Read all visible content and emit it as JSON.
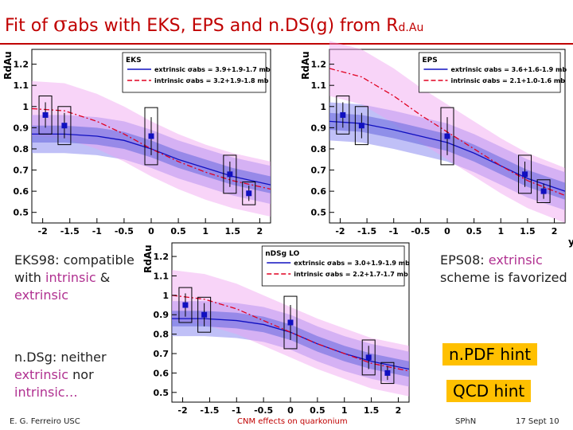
{
  "slide": {
    "title_prefix": "Fit of ",
    "title_symbol": "σ",
    "title_rest": "abs with EKS, EPS and n.DS(g) from R",
    "title_sub": "d.Au"
  },
  "notes": {
    "left_top": {
      "a": "EKS98: compatible",
      "b": "with ",
      "c": "intrinsic",
      "d": " &",
      "e": "extrinsic"
    },
    "right_top": {
      "a": "EPS08: ",
      "b": "extrinsic",
      "c": "scheme is favorized"
    },
    "left_bottom": {
      "a": "n.DSg: neither",
      "b": "extrinsic",
      "c": " nor",
      "d": "intrinsic…"
    }
  },
  "hints": {
    "npdf": "n.PDF hint",
    "qcd": "QCD hint"
  },
  "footer": {
    "author": "E. G. Ferreiro USC",
    "topic": "CNM effects on quarkonium",
    "venue": "SPhN",
    "date": "17 Sept 10"
  },
  "colors": {
    "title": "#c00000",
    "band_blue": "#8c8cf0",
    "band_pink": "#f0a0f0",
    "data": "#1010c0",
    "intrinsic": "#e00020"
  },
  "chart_data": [
    {
      "type": "line",
      "panel_label": "EKS",
      "ylabel": "RdAu",
      "xlabel": "",
      "xlim": [
        -2.2,
        2.2
      ],
      "ylim": [
        0.45,
        1.27
      ],
      "x_ticks": [
        -2,
        -1.5,
        -1,
        -0.5,
        0,
        0.5,
        1,
        1.5,
        2
      ],
      "y_ticks": [
        0.5,
        0.6,
        0.7,
        0.8,
        0.9,
        1,
        1.1,
        1.2
      ],
      "points": [
        {
          "x": -1.95,
          "y": 0.96,
          "err": 0.1
        },
        {
          "x": -1.6,
          "y": 0.91,
          "err": 0.1
        },
        {
          "x": 0.0,
          "y": 0.86,
          "err": 0.15
        },
        {
          "x": 1.45,
          "y": 0.68,
          "err": 0.1
        },
        {
          "x": 1.8,
          "y": 0.59,
          "err": 0.06
        }
      ],
      "series": [
        {
          "name": "extrinsic σabs = 3.9+1.9-1.7 mb",
          "x": [
            -2.2,
            -1.6,
            -1,
            -0.5,
            0,
            0.5,
            1,
            1.5,
            2.2
          ],
          "y": [
            0.87,
            0.87,
            0.86,
            0.84,
            0.8,
            0.75,
            0.71,
            0.67,
            0.63
          ]
        },
        {
          "name": "intrinsic σabs = 3.2+1.9-1.8 mb",
          "x": [
            -2.2,
            -1.6,
            -1,
            -0.5,
            0,
            0.5,
            1,
            1.5,
            2.2
          ],
          "y": [
            0.99,
            0.98,
            0.93,
            0.87,
            0.8,
            0.74,
            0.69,
            0.65,
            0.61
          ]
        }
      ]
    },
    {
      "type": "line",
      "panel_label": "EPS",
      "ylabel": "RdAu",
      "xlabel": "y",
      "xlim": [
        -2.2,
        2.2
      ],
      "ylim": [
        0.45,
        1.27
      ],
      "x_ticks": [
        -2,
        -1.5,
        -1,
        -0.5,
        0,
        0.5,
        1,
        1.5,
        2
      ],
      "y_ticks": [
        0.5,
        0.6,
        0.7,
        0.8,
        0.9,
        1,
        1.1,
        1.2
      ],
      "points": [
        {
          "x": -1.95,
          "y": 0.96,
          "err": 0.1
        },
        {
          "x": -1.6,
          "y": 0.91,
          "err": 0.1
        },
        {
          "x": 0.0,
          "y": 0.86,
          "err": 0.15
        },
        {
          "x": 1.45,
          "y": 0.68,
          "err": 0.1
        },
        {
          "x": 1.8,
          "y": 0.6,
          "err": 0.06
        }
      ],
      "series": [
        {
          "name": "extrinsic σabs = 3.6+1.6-1.9 mb",
          "x": [
            -2.2,
            -1.6,
            -1,
            -0.5,
            0,
            0.5,
            1,
            1.5,
            2.2
          ],
          "y": [
            0.93,
            0.92,
            0.89,
            0.86,
            0.83,
            0.78,
            0.72,
            0.66,
            0.6
          ]
        },
        {
          "name": "intrinsic σabs = 2.1+1.0-1.6 mb",
          "x": [
            -2.2,
            -1.6,
            -1,
            -0.5,
            0,
            0.5,
            1,
            1.5,
            2.2
          ],
          "y": [
            1.18,
            1.14,
            1.05,
            0.96,
            0.88,
            0.8,
            0.72,
            0.65,
            0.58
          ]
        }
      ]
    },
    {
      "type": "line",
      "panel_label": "nDSg LO",
      "ylabel": "RdAu",
      "xlabel": "",
      "xlim": [
        -2.2,
        2.2
      ],
      "ylim": [
        0.45,
        1.27
      ],
      "x_ticks": [
        -2,
        -1.5,
        -1,
        -0.5,
        0,
        0.5,
        1,
        1.5,
        2
      ],
      "y_ticks": [
        0.5,
        0.6,
        0.7,
        0.8,
        0.9,
        1,
        1.1,
        1.2
      ],
      "points": [
        {
          "x": -1.95,
          "y": 0.95,
          "err": 0.1
        },
        {
          "x": -1.6,
          "y": 0.9,
          "err": 0.1
        },
        {
          "x": 0.0,
          "y": 0.86,
          "err": 0.15
        },
        {
          "x": 1.45,
          "y": 0.68,
          "err": 0.1
        },
        {
          "x": 1.8,
          "y": 0.6,
          "err": 0.06
        }
      ],
      "series": [
        {
          "name": "extrinsic σabs = 3.0+1.9-1.9 mb",
          "x": [
            -2.2,
            -1.6,
            -1,
            -0.5,
            0,
            0.5,
            1,
            1.5,
            2.2
          ],
          "y": [
            0.88,
            0.88,
            0.87,
            0.85,
            0.81,
            0.75,
            0.7,
            0.66,
            0.62
          ]
        },
        {
          "name": "intrinsic σabs = 2.2+1.7-1.7 mb",
          "x": [
            -2.2,
            -1.6,
            -1,
            -0.5,
            0,
            0.5,
            1,
            1.5,
            2.2
          ],
          "y": [
            1.0,
            0.98,
            0.93,
            0.87,
            0.81,
            0.75,
            0.7,
            0.65,
            0.61
          ]
        }
      ]
    }
  ]
}
